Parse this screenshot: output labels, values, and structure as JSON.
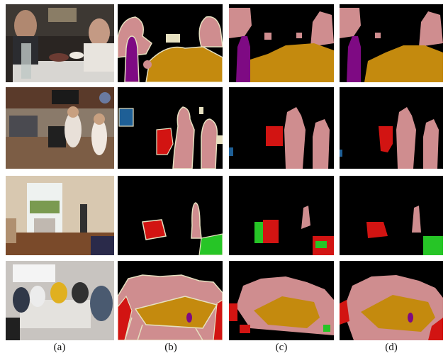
{
  "figure": {
    "column_labels": [
      "(a)",
      "(b)",
      "(c)",
      "(d)"
    ]
  },
  "colors": {
    "background": "#000000",
    "person": "#cf8d8f",
    "table": "#c48a0e",
    "bottle": "#7e0a83",
    "chair": "#d21412",
    "sofa": "#26c526",
    "tvmonitor": "#1e5f96",
    "void_boundary": "#e6e0c0"
  }
}
